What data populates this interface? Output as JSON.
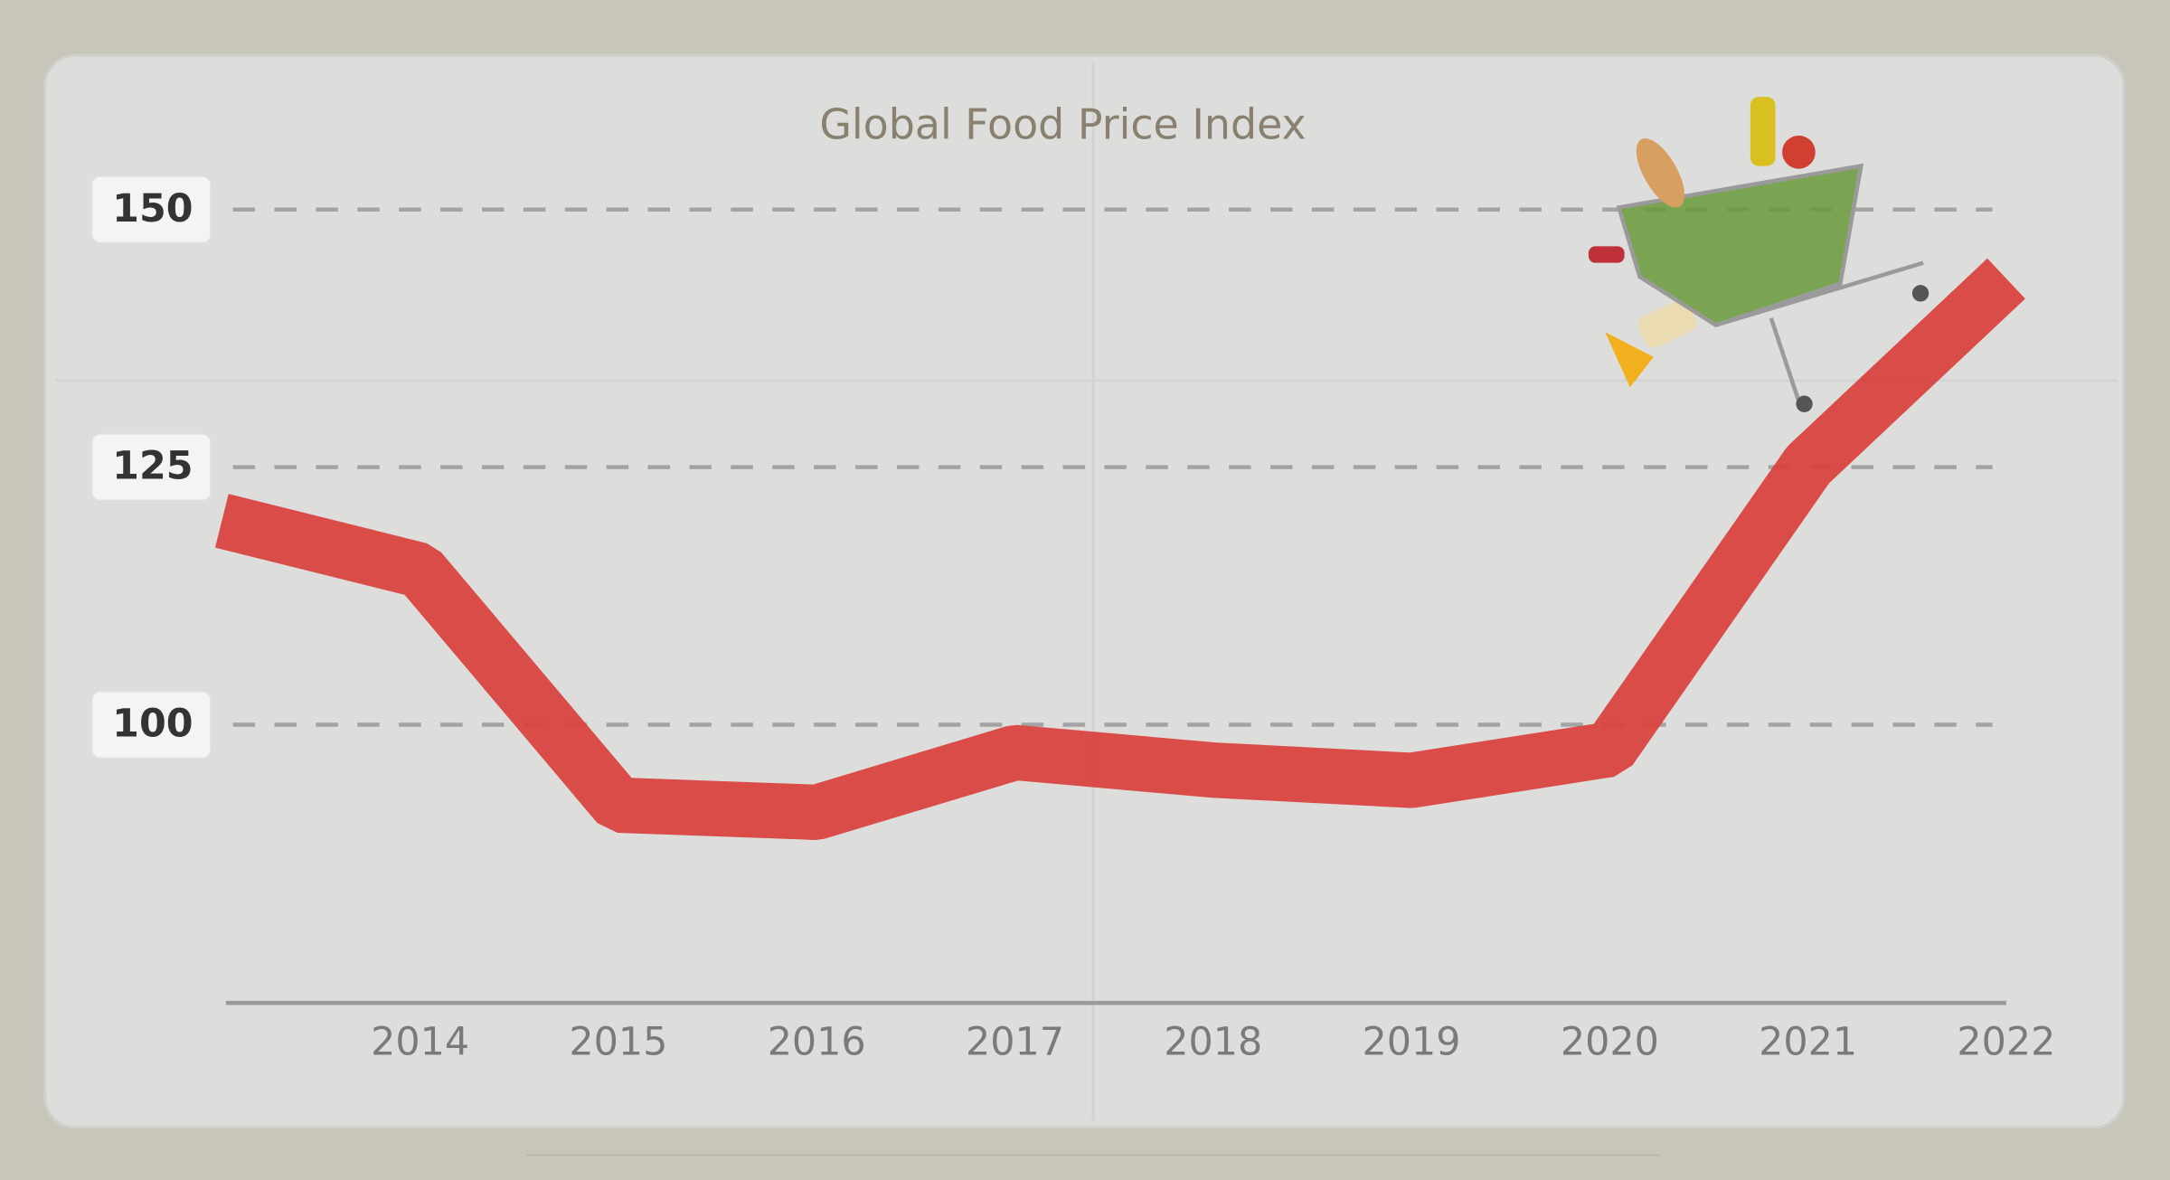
{
  "chart_data": {
    "type": "line",
    "title": "Global Food Price Index",
    "categories": [
      null,
      "2014",
      "2015",
      "2016",
      "2017",
      "2018",
      "2019",
      "2020",
      "2021",
      "2022"
    ],
    "values": [
      119.8,
      115,
      92.2,
      91.5,
      97.3,
      95.6,
      94.6,
      97.6,
      125.2,
      143.3
    ],
    "color": "#d8433f",
    "ylim": [
      73,
      160
    ],
    "yticks": [
      100,
      125,
      150
    ],
    "grid": true
  }
}
